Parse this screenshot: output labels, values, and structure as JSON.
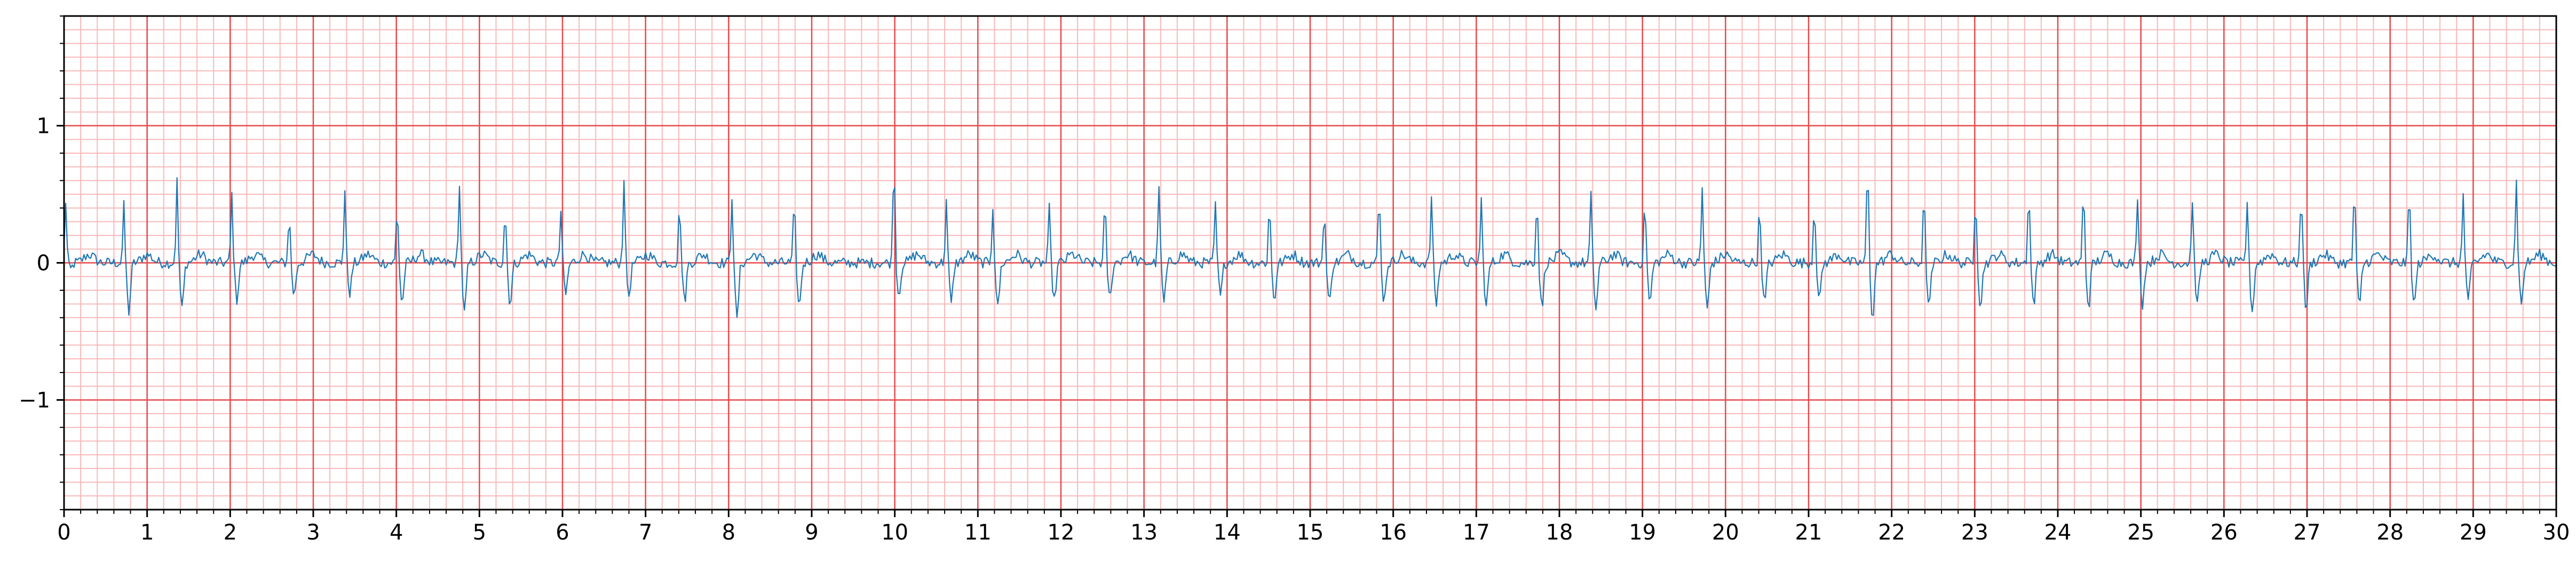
{
  "chart_data": {
    "type": "line",
    "title": "",
    "xlabel": "",
    "ylabel": "",
    "xlim": [
      0,
      30
    ],
    "ylim": [
      -1.8,
      1.8
    ],
    "x_ticks": [
      0,
      1,
      2,
      3,
      4,
      5,
      6,
      7,
      8,
      9,
      10,
      11,
      12,
      13,
      14,
      15,
      16,
      17,
      18,
      19,
      20,
      21,
      22,
      23,
      24,
      25,
      26,
      27,
      28,
      29,
      30
    ],
    "x_tick_labels": [
      "0",
      "1",
      "2",
      "3",
      "4",
      "5",
      "6",
      "7",
      "8",
      "9",
      "10",
      "11",
      "12",
      "13",
      "14",
      "15",
      "16",
      "17",
      "18",
      "19",
      "20",
      "21",
      "22",
      "23",
      "24",
      "25",
      "26",
      "27",
      "28",
      "29",
      "30"
    ],
    "y_ticks": [
      -1,
      0,
      1
    ],
    "y_tick_labels": [
      "−1",
      "0",
      "1"
    ],
    "grid": "ECG paper: major lines every 1 s / 1 unit, minor lines every 0.2 s / 0.1 unit",
    "line_color": "#1f77b4",
    "major_grid_color": "#e8484b",
    "minor_grid_color": "#f9b9b9",
    "series": [
      {
        "sample_interval_s": 0.02,
        "beats_s": [
          0.02,
          0.72,
          1.36,
          2.02,
          2.71,
          3.38,
          4.01,
          4.76,
          5.31,
          5.98,
          6.74,
          7.41,
          8.04,
          8.79,
          9.99,
          10.62,
          11.18,
          11.86,
          12.53,
          13.18,
          13.86,
          14.51,
          15.17,
          15.83,
          16.46,
          17.06,
          17.73,
          18.38,
          19.03,
          19.72,
          20.41,
          21.07,
          21.71,
          22.39,
          23.01,
          23.65,
          24.31,
          24.96,
          25.62,
          26.28,
          26.93,
          27.57,
          28.23,
          28.88,
          29.52
        ],
        "beat_peaks": [
          0.45,
          0.42,
          0.6,
          0.5,
          0.36,
          0.53,
          0.42,
          0.6,
          0.4,
          0.38,
          0.63,
          0.45,
          0.5,
          0.45,
          0.78,
          0.46,
          0.42,
          0.4,
          0.44,
          0.58,
          0.43,
          0.44,
          0.41,
          0.5,
          0.48,
          0.46,
          0.48,
          0.49,
          0.46,
          0.55,
          0.42,
          0.45,
          0.74,
          0.5,
          0.52,
          0.55,
          0.55,
          0.5,
          0.47,
          0.46,
          0.55,
          0.58,
          0.54,
          0.5,
          0.62
        ],
        "beat_troughs": [
          -0.05,
          -0.36,
          -0.34,
          -0.27,
          -0.24,
          -0.22,
          -0.3,
          -0.37,
          -0.3,
          -0.23,
          -0.24,
          -0.28,
          -0.42,
          -0.33,
          -0.24,
          -0.3,
          -0.33,
          -0.28,
          -0.27,
          -0.29,
          -0.25,
          -0.27,
          -0.3,
          -0.28,
          -0.3,
          -0.32,
          -0.33,
          -0.34,
          -0.3,
          -0.35,
          -0.3,
          -0.28,
          -0.4,
          -0.33,
          -0.32,
          -0.3,
          -0.32,
          -0.3,
          -0.31,
          -0.36,
          -0.34,
          -0.33,
          -0.32,
          -0.3,
          -0.31
        ],
        "baseline_offset": 0.0,
        "noise_amplitude": 0.08
      }
    ]
  }
}
